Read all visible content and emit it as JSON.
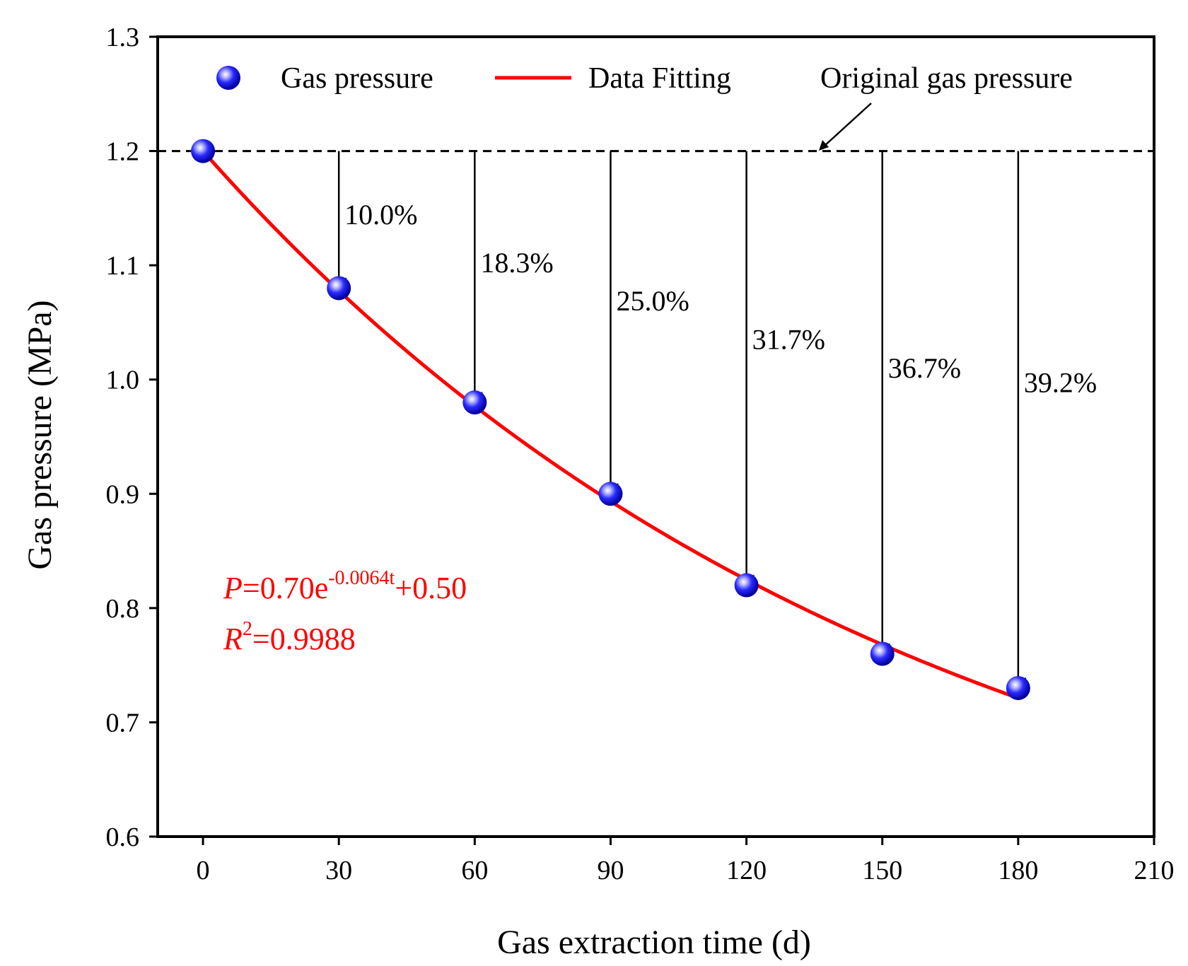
{
  "chart_data": {
    "type": "scatter",
    "title": "",
    "xlabel": "Gas extraction time (d)",
    "ylabel": "Gas pressure (MPa)",
    "xlim": [
      -10,
      210
    ],
    "ylim": [
      0.6,
      1.3
    ],
    "x_ticks": [
      0,
      30,
      60,
      90,
      120,
      150,
      180,
      210
    ],
    "y_ticks": [
      "0.6",
      "0.7",
      "0.8",
      "0.9",
      "1.0",
      "1.1",
      "1.2",
      "1.3"
    ],
    "grid": false,
    "legend": {
      "placement": "top",
      "items": [
        "Gas pressure",
        "Data Fitting",
        "Original gas pressure"
      ]
    },
    "series": [
      {
        "name": "Gas pressure",
        "kind": "scatter",
        "color": "#1a1aff",
        "x": [
          0,
          30,
          60,
          90,
          120,
          150,
          180
        ],
        "y": [
          1.2,
          1.08,
          0.98,
          0.9,
          0.82,
          0.76,
          0.73
        ]
      },
      {
        "name": "Data Fitting",
        "kind": "line",
        "color": "#ff0000",
        "formula": {
          "a": 0.7,
          "k": -0.0064,
          "c": 0.5
        },
        "x_range": [
          0,
          180
        ]
      },
      {
        "name": "Original gas pressure",
        "kind": "hline",
        "color": "#000000",
        "y": 1.2
      }
    ],
    "reduction_annotations": [
      {
        "x": 30,
        "label": "10.0%"
      },
      {
        "x": 60,
        "label": "18.3%"
      },
      {
        "x": 90,
        "label": "25.0%"
      },
      {
        "x": 120,
        "label": "31.7%"
      },
      {
        "x": 150,
        "label": "36.7%"
      },
      {
        "x": 180,
        "label": "39.2%"
      }
    ],
    "equation": {
      "color": "#ff0000",
      "line1_var": "P",
      "line1_main": "=0.70e",
      "line1_sup": "-0.0064t",
      "line1_tail": "+0.50",
      "line2_var": "R",
      "line2_sup": "2",
      "line2_main": "=0.9988"
    }
  }
}
